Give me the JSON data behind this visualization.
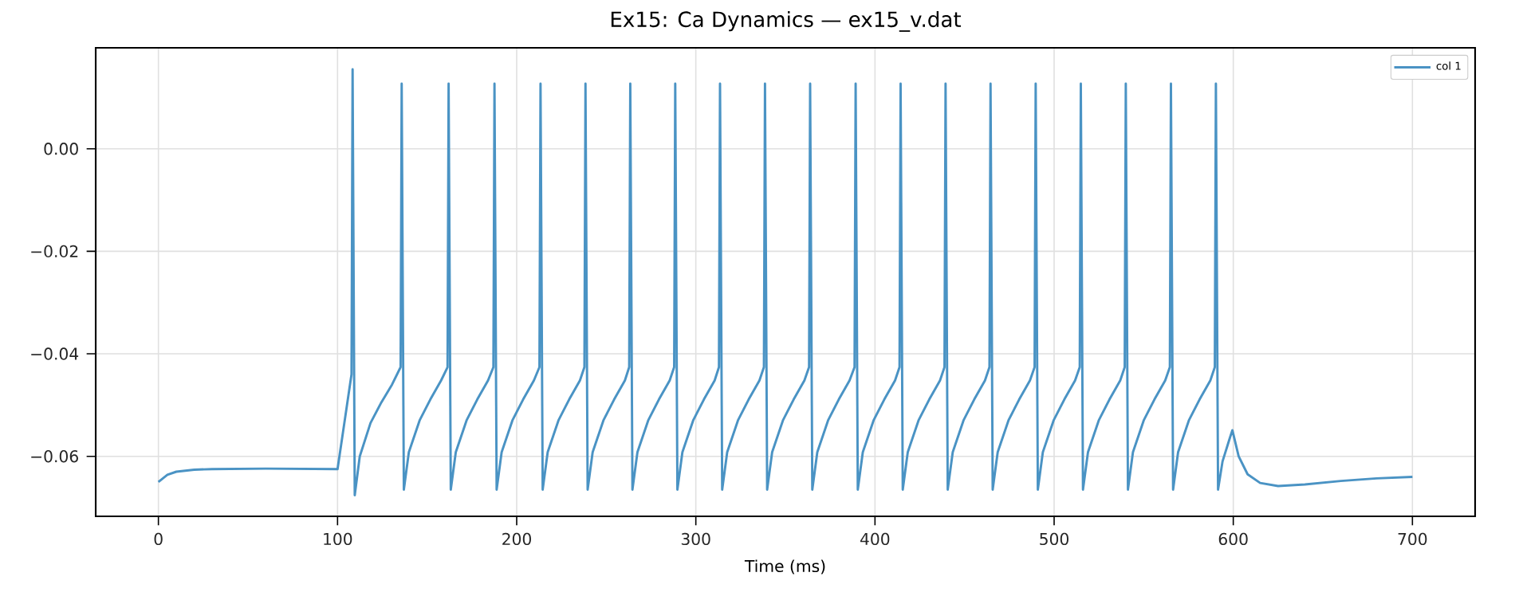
{
  "chart_data": {
    "type": "line",
    "title": "Ex15: Ca Dynamics — ex15_v.dat",
    "xlabel": "Time (ms)",
    "xlim": [
      -35,
      735
    ],
    "ylim": [
      -0.0717,
      0.0197
    ],
    "xticks": [
      0,
      100,
      200,
      300,
      400,
      500,
      600,
      700
    ],
    "yticks": [
      {
        "value": -0.06,
        "label": "−0.06"
      },
      {
        "value": -0.04,
        "label": "−0.04"
      },
      {
        "value": -0.02,
        "label": "−0.02"
      },
      {
        "value": 0,
        "label": "0.00"
      }
    ],
    "grid": true,
    "legend": "top right",
    "line_style": "solid",
    "marker": "none",
    "series": [
      {
        "name": "col 1",
        "color": "#4a93c4",
        "x": [
          0,
          5,
          10,
          20,
          30,
          60,
          100,
          107.8,
          108.4,
          109.6,
          112.4,
          118.4,
          124.4,
          130.4,
          135.2,
          135.8,
          137.0,
          139.8,
          145.8,
          151.8,
          157.8,
          161.4,
          162.0,
          163.2,
          166.0,
          172.0,
          178.0,
          184.0,
          187.0,
          187.6,
          188.8,
          191.6,
          197.6,
          203.6,
          209.6,
          212.7,
          213.3,
          214.5,
          217.3,
          223.3,
          229.3,
          235.3,
          237.8,
          238.4,
          239.6,
          242.4,
          248.4,
          254.4,
          260.4,
          262.8,
          263.4,
          264.6,
          267.4,
          273.4,
          279.4,
          285.4,
          287.9,
          288.5,
          289.7,
          292.5,
          298.5,
          304.5,
          310.5,
          312.9,
          313.5,
          314.7,
          317.5,
          323.5,
          329.5,
          335.5,
          338.0,
          338.6,
          339.8,
          342.6,
          348.6,
          354.6,
          360.6,
          363.2,
          363.8,
          365.0,
          367.8,
          373.8,
          379.8,
          385.8,
          388.6,
          389.2,
          390.4,
          393.2,
          399.2,
          405.2,
          411.2,
          413.7,
          414.3,
          415.5,
          418.3,
          424.3,
          430.3,
          436.3,
          438.8,
          439.4,
          440.6,
          443.4,
          449.4,
          455.4,
          461.4,
          463.9,
          464.5,
          465.7,
          468.5,
          474.5,
          480.5,
          486.5,
          489.1,
          489.7,
          490.9,
          493.7,
          499.7,
          505.7,
          511.7,
          514.3,
          514.9,
          516.1,
          518.9,
          524.9,
          530.9,
          536.9,
          539.4,
          540.0,
          541.2,
          544.0,
          550.0,
          556.0,
          562.0,
          564.6,
          565.2,
          566.4,
          569.2,
          575.2,
          581.2,
          587.2,
          589.7,
          590.3,
          591.5,
          594,
          598,
          599.5,
          603,
          608,
          615,
          625,
          640,
          660,
          680,
          700
        ],
        "values": [
          -0.065,
          -0.0636,
          -0.063,
          -0.0626,
          -0.0625,
          -0.0624,
          -0.0625,
          -0.044,
          0.0155,
          -0.0676,
          -0.06,
          -0.0535,
          -0.0495,
          -0.046,
          -0.0426,
          0.0127,
          -0.0665,
          -0.0592,
          -0.053,
          -0.0489,
          -0.0452,
          -0.0426,
          0.0127,
          -0.0665,
          -0.0592,
          -0.053,
          -0.0489,
          -0.0452,
          -0.0426,
          0.0127,
          -0.0665,
          -0.0592,
          -0.053,
          -0.0489,
          -0.0452,
          -0.0426,
          0.0127,
          -0.0665,
          -0.0592,
          -0.053,
          -0.0489,
          -0.0452,
          -0.0426,
          0.0127,
          -0.0665,
          -0.0592,
          -0.053,
          -0.0489,
          -0.0452,
          -0.0426,
          0.0127,
          -0.0665,
          -0.0592,
          -0.053,
          -0.0489,
          -0.0452,
          -0.0426,
          0.0127,
          -0.0665,
          -0.0592,
          -0.053,
          -0.0489,
          -0.0452,
          -0.0426,
          0.0127,
          -0.0665,
          -0.0592,
          -0.053,
          -0.0489,
          -0.0452,
          -0.0426,
          0.0127,
          -0.0665,
          -0.0592,
          -0.053,
          -0.0489,
          -0.0452,
          -0.0426,
          0.0127,
          -0.0665,
          -0.0592,
          -0.053,
          -0.0489,
          -0.0452,
          -0.0426,
          0.0127,
          -0.0665,
          -0.0592,
          -0.053,
          -0.0489,
          -0.0452,
          -0.0426,
          0.0127,
          -0.0665,
          -0.0592,
          -0.053,
          -0.0489,
          -0.0452,
          -0.0426,
          0.0127,
          -0.0665,
          -0.0592,
          -0.053,
          -0.0489,
          -0.0452,
          -0.0426,
          0.0127,
          -0.0665,
          -0.0592,
          -0.053,
          -0.0489,
          -0.0452,
          -0.0426,
          0.0127,
          -0.0665,
          -0.0592,
          -0.053,
          -0.0489,
          -0.0452,
          -0.0426,
          0.0127,
          -0.0665,
          -0.0592,
          -0.053,
          -0.0489,
          -0.0452,
          -0.0426,
          0.0127,
          -0.0665,
          -0.0592,
          -0.053,
          -0.0489,
          -0.0452,
          -0.0426,
          0.0127,
          -0.0665,
          -0.0592,
          -0.053,
          -0.0489,
          -0.0452,
          -0.0426,
          0.0127,
          -0.0665,
          -0.061,
          -0.0565,
          -0.0549,
          -0.06,
          -0.0635,
          -0.0652,
          -0.0658,
          -0.0655,
          -0.0648,
          -0.0643,
          -0.064
        ]
      }
    ]
  }
}
